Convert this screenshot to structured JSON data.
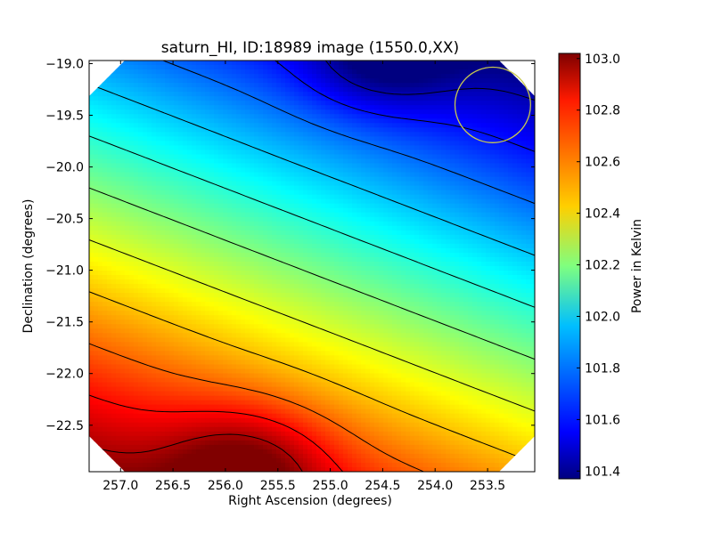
{
  "chart_data": {
    "type": "heatmap",
    "title": "saturn_HI, ID:18989 image (1550.0,XX)",
    "xlabel": "Right Ascension (degrees)",
    "ylabel": "Declination (degrees)",
    "colorbar_label": "Power in Kelvin",
    "colormap": "jet",
    "xlim": [
      257.3,
      253.05
    ],
    "ylim": [
      -22.95,
      -18.97
    ],
    "x_ticks": [
      257.0,
      256.5,
      256.0,
      255.5,
      255.0,
      254.5,
      254.0,
      253.5
    ],
    "x_tick_labels": [
      "257.0",
      "256.5",
      "256.0",
      "255.5",
      "255.0",
      "254.5",
      "254.0",
      "253.5"
    ],
    "y_ticks": [
      -19.0,
      -19.5,
      -20.0,
      -20.5,
      -21.0,
      -21.5,
      -22.0,
      -22.5
    ],
    "y_tick_labels": [
      "−19.0",
      "−19.5",
      "−20.0",
      "−20.5",
      "−21.0",
      "−21.5",
      "−22.0",
      "−22.5"
    ],
    "color_range": [
      101.37,
      103.02
    ],
    "colorbar_ticks": [
      101.4,
      101.6,
      101.8,
      102.0,
      102.2,
      102.4,
      102.6,
      102.8,
      103.0
    ],
    "colorbar_tick_labels": [
      "101.4",
      "101.6",
      "101.8",
      "102.0",
      "102.2",
      "102.4",
      "102.6",
      "102.8",
      "103.0"
    ],
    "field_peak_high": {
      "ra": 255.8,
      "dec": -22.9,
      "value": 103.0
    },
    "field_peak_low": {
      "ra": 254.5,
      "dec": -19.0,
      "value": 101.4
    },
    "gradient_direction": "values decrease from bottom-left (high) toward top-right (low)",
    "circle_marker": {
      "ra": 253.45,
      "dec": -19.4,
      "radius_deg": 0.36,
      "color": "#c8c850"
    },
    "contour_color": "#000000"
  }
}
